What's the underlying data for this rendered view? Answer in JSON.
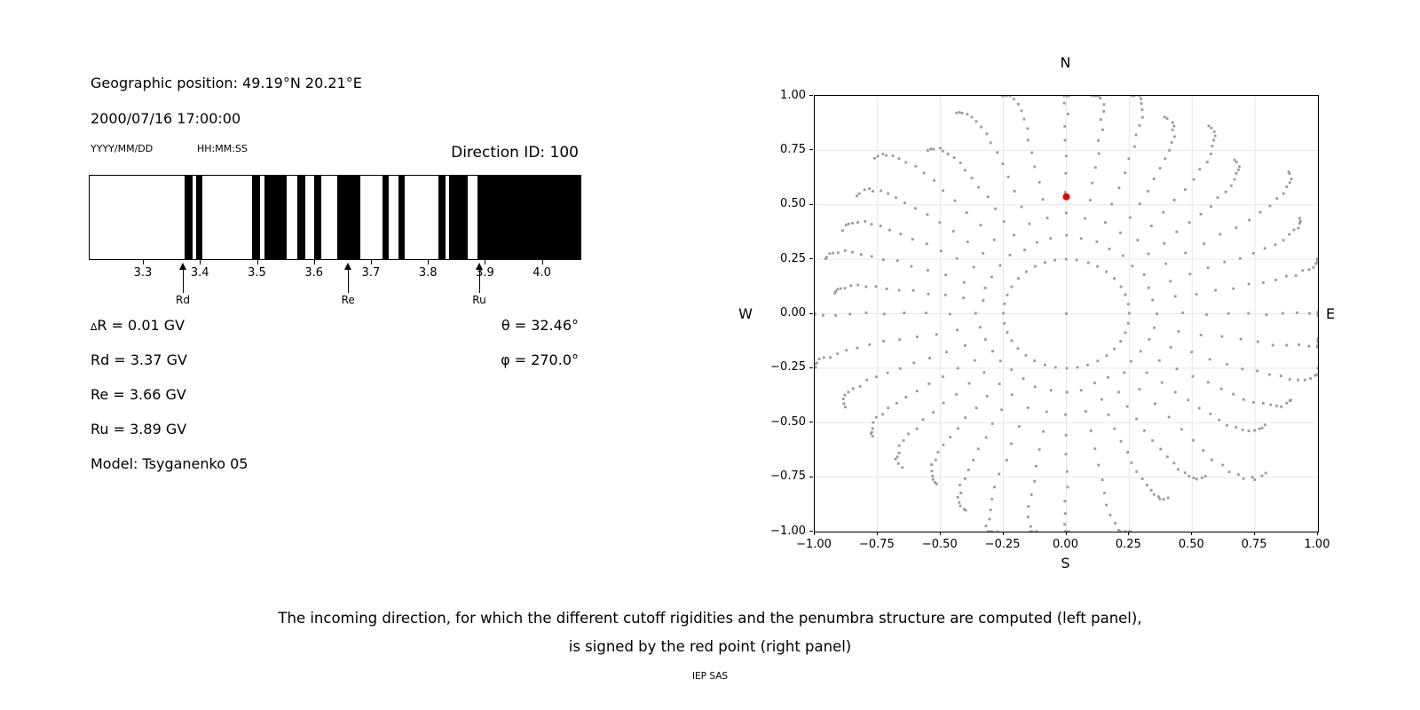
{
  "left_panel": {
    "geo_position": "Geographic position: 49.19°N 20.21°E",
    "datetime": "2000/07/16 17:00:00",
    "date_format_hint": "YYYY/MM/DD",
    "time_format_hint": "HH:MM:SS",
    "direction_id": "Direction ID: 100",
    "delta_r": {
      "sym": "∆",
      "text": "R = 0.01 GV"
    },
    "rigidity_rows": [
      "Rd = 3.37 GV",
      "Re = 3.66 GV",
      "Ru = 3.89 GV"
    ],
    "model": "Model: Tsyganenko 05",
    "theta": "θ = 32.46°",
    "phi": "φ = 270.0°"
  },
  "chart_data": [
    {
      "type": "bar",
      "name": "penumbra-rigidity-spectrum",
      "xlim": [
        3.205,
        4.066
      ],
      "xtick_labels": [
        "3.3",
        "3.4",
        "3.5",
        "3.6",
        "3.7",
        "3.8",
        "3.9",
        "4.0"
      ],
      "allowed_color": "#ffffff",
      "forbidden_color": "#000000",
      "forbidden_bands_gv": [
        [
          3.372,
          3.386
        ],
        [
          3.391,
          3.403
        ],
        [
          3.49,
          3.504
        ],
        [
          3.511,
          3.551
        ],
        [
          3.57,
          3.583
        ],
        [
          3.599,
          3.611
        ],
        [
          3.64,
          3.68
        ],
        [
          3.718,
          3.73
        ],
        [
          3.746,
          3.757
        ],
        [
          3.817,
          3.829
        ],
        [
          3.836,
          3.869
        ],
        [
          3.886,
          4.066
        ]
      ],
      "markers": [
        {
          "label": "Rd",
          "value_gv": 3.37
        },
        {
          "label": "Re",
          "value_gv": 3.66
        },
        {
          "label": "Ru",
          "value_gv": 3.89
        }
      ]
    },
    {
      "type": "scatter",
      "name": "incoming-direction-map",
      "direction_labels": {
        "top": "N",
        "right": "E",
        "bottom": "S",
        "left": "W"
      },
      "xlim": [
        -1,
        1
      ],
      "ylim": [
        -1,
        1
      ],
      "xticks": [
        -1,
        -0.75,
        -0.5,
        -0.25,
        0,
        0.25,
        0.5,
        0.75,
        1
      ],
      "xtick_labels": [
        "−1.00",
        "−0.75",
        "−0.50",
        "−0.25",
        "0.00",
        "0.25",
        "0.50",
        "0.75",
        "1.00"
      ],
      "yticks": [
        1,
        0.75,
        0.5,
        0.25,
        0,
        -0.25,
        -0.5,
        -0.75,
        -1
      ],
      "ytick_labels": [
        "1.00",
        "0.75",
        "0.50",
        "0.25",
        "0.00",
        "−0.25",
        "−0.50",
        "−0.75",
        "−1.00"
      ],
      "grid": true,
      "grid_color": "#e7e7e7",
      "dot_color": "#9a9a9a",
      "dot_size_px": 2.8,
      "center_point": {
        "x": 0,
        "y": 0
      },
      "red_point": {
        "x": 0.0,
        "y": 0.537,
        "color": "#e60000",
        "radius_px": 4
      },
      "rays": {
        "count": 36,
        "angle_step_deg": 10,
        "first_angle_deg": 90,
        "inner_radius": 0.25,
        "dots_per_ray": 17,
        "r_max_min": 0.92,
        "r_max_spread": 0.18,
        "cardinal_r_max": 1.12,
        "clump_exponent": 2.1,
        "swirl_deg": 7,
        "jitter_deg": 1.0,
        "seed": 7
      }
    }
  ],
  "caption": {
    "line1": "The incoming direction, for which the different cutoff rigidities and the penumbra structure are computed (left panel),",
    "line2": "is signed by the red point (right panel)",
    "credit": "IEP SAS"
  }
}
